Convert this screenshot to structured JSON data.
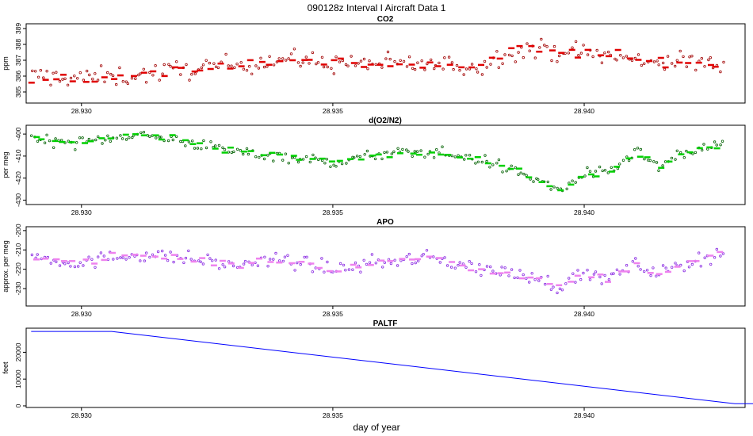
{
  "figure": {
    "title": "090128z   Interval I Aircraft Data 1",
    "xlabel": "day of year"
  },
  "chart_data": [
    {
      "type": "scatter",
      "title": "CO2",
      "ylabel": "ppm",
      "xlim": [
        28.9289,
        28.9432
      ],
      "ylim": [
        384.3,
        389.3
      ],
      "x_ticks": [
        28.93,
        28.935,
        28.94
      ],
      "x_tick_labels": [
        "28.930",
        "28.935",
        "28.940"
      ],
      "y_ticks": [
        385,
        386,
        387,
        388,
        389
      ],
      "y_tick_labels": [
        "385",
        "386",
        "387",
        "388",
        "389"
      ],
      "series": [
        {
          "style": "raw points (open circles)",
          "color": "#a00000",
          "trend": [
            [
              28.929,
              386.0
            ],
            [
              28.93,
              385.9
            ],
            [
              28.931,
              386.0
            ],
            [
              28.932,
              386.4
            ],
            [
              28.933,
              386.7
            ],
            [
              28.934,
              387.1
            ],
            [
              28.935,
              386.8
            ],
            [
              28.936,
              386.8
            ],
            [
              28.937,
              386.7
            ],
            [
              28.938,
              386.6
            ],
            [
              28.9385,
              387.6
            ],
            [
              28.939,
              387.7
            ],
            [
              28.94,
              387.5
            ],
            [
              28.941,
              387.0
            ],
            [
              28.942,
              386.9
            ],
            [
              28.9428,
              386.7
            ]
          ],
          "spread": 0.6,
          "n": 230
        },
        {
          "style": "interval means (short bars)",
          "color": "#e00000",
          "trend": [
            [
              28.929,
              386.0
            ],
            [
              28.93,
              385.8
            ],
            [
              28.931,
              386.0
            ],
            [
              28.932,
              386.4
            ],
            [
              28.933,
              386.7
            ],
            [
              28.934,
              387.1
            ],
            [
              28.935,
              386.8
            ],
            [
              28.936,
              386.8
            ],
            [
              28.937,
              386.7
            ],
            [
              28.938,
              386.6
            ],
            [
              28.9385,
              387.6
            ],
            [
              28.939,
              387.7
            ],
            [
              28.94,
              387.5
            ],
            [
              28.941,
              387.0
            ],
            [
              28.942,
              386.9
            ],
            [
              28.9428,
              386.7
            ]
          ],
          "spread": 0.35,
          "n": 70
        }
      ]
    },
    {
      "type": "scatter",
      "title": "d(O2/N2)",
      "ylabel": "per meg",
      "xlim": [
        28.9289,
        28.9432
      ],
      "ylim": [
        -432,
        -396
      ],
      "x_ticks": [
        28.93,
        28.935,
        28.94
      ],
      "x_tick_labels": [
        "28.930",
        "28.935",
        "28.940"
      ],
      "y_ticks": [
        -430,
        -420,
        -410,
        -400
      ],
      "y_tick_labels": [
        "-430",
        "-420",
        "-410",
        "-400"
      ],
      "series": [
        {
          "style": "raw points (open circles)",
          "color": "#006000",
          "trend": [
            [
              28.929,
              -402
            ],
            [
              28.93,
              -404
            ],
            [
              28.931,
              -400
            ],
            [
              28.932,
              -403
            ],
            [
              28.933,
              -408
            ],
            [
              28.934,
              -410
            ],
            [
              28.935,
              -413
            ],
            [
              28.936,
              -409
            ],
            [
              28.937,
              -408
            ],
            [
              28.938,
              -412
            ],
            [
              28.939,
              -420
            ],
            [
              28.9395,
              -426
            ],
            [
              28.94,
              -418
            ],
            [
              28.9405,
              -418
            ],
            [
              28.941,
              -408
            ],
            [
              28.9415,
              -415
            ],
            [
              28.942,
              -409
            ],
            [
              28.9428,
              -404
            ]
          ],
          "spread": 2.5,
          "n": 230
        },
        {
          "style": "interval means (short bars)",
          "color": "#00d000",
          "trend": [
            [
              28.929,
              -402
            ],
            [
              28.93,
              -404
            ],
            [
              28.931,
              -400
            ],
            [
              28.932,
              -403
            ],
            [
              28.933,
              -408
            ],
            [
              28.934,
              -410
            ],
            [
              28.935,
              -413
            ],
            [
              28.936,
              -409
            ],
            [
              28.937,
              -408
            ],
            [
              28.938,
              -412
            ],
            [
              28.939,
              -420
            ],
            [
              28.9395,
              -426
            ],
            [
              28.94,
              -418
            ],
            [
              28.9405,
              -418
            ],
            [
              28.941,
              -408
            ],
            [
              28.9415,
              -415
            ],
            [
              28.942,
              -409
            ],
            [
              28.9428,
              -404
            ]
          ],
          "spread": 1.5,
          "n": 70
        }
      ]
    },
    {
      "type": "scatter",
      "title": "APO",
      "ylabel": "approx. per meg",
      "xlim": [
        28.9289,
        28.9432
      ],
      "ylim": [
        -239,
        -198
      ],
      "x_ticks": [
        28.93,
        28.935,
        28.94
      ],
      "x_tick_labels": [
        "28.930",
        "28.935",
        "28.940"
      ],
      "y_ticks": [
        -230,
        -220,
        -210,
        -200
      ],
      "y_tick_labels": [
        "-230",
        "-220",
        "-210",
        "-200"
      ],
      "series": [
        {
          "style": "raw points (open circles)",
          "color": "#8a2be2",
          "trend": [
            [
              28.929,
              -213
            ],
            [
              28.93,
              -217
            ],
            [
              28.931,
              -212
            ],
            [
              28.932,
              -214
            ],
            [
              28.933,
              -218
            ],
            [
              28.934,
              -215
            ],
            [
              28.935,
              -220
            ],
            [
              28.936,
              -216
            ],
            [
              28.937,
              -214
            ],
            [
              28.938,
              -220
            ],
            [
              28.939,
              -224
            ],
            [
              28.9395,
              -229
            ],
            [
              28.94,
              -222
            ],
            [
              28.9405,
              -225
            ],
            [
              28.941,
              -218
            ],
            [
              28.9415,
              -222
            ],
            [
              28.942,
              -217
            ],
            [
              28.9428,
              -211
            ]
          ],
          "spread": 3.5,
          "n": 230
        },
        {
          "style": "interval means (short bars)",
          "color": "#ee82ee",
          "trend": [
            [
              28.929,
              -213
            ],
            [
              28.93,
              -217
            ],
            [
              28.931,
              -212
            ],
            [
              28.932,
              -214
            ],
            [
              28.933,
              -218
            ],
            [
              28.934,
              -215
            ],
            [
              28.935,
              -220
            ],
            [
              28.936,
              -216
            ],
            [
              28.937,
              -214
            ],
            [
              28.938,
              -220
            ],
            [
              28.939,
              -224
            ],
            [
              28.9395,
              -229
            ],
            [
              28.94,
              -222
            ],
            [
              28.9405,
              -225
            ],
            [
              28.941,
              -218
            ],
            [
              28.9415,
              -222
            ],
            [
              28.942,
              -217
            ],
            [
              28.9428,
              -211
            ]
          ],
          "spread": 2.0,
          "n": 70
        }
      ]
    },
    {
      "type": "line",
      "title": "PALTF",
      "ylabel": "feet",
      "xlim": [
        28.9289,
        28.9432
      ],
      "ylim": [
        -600,
        29000
      ],
      "x_ticks": [
        28.93,
        28.935,
        28.94
      ],
      "x_tick_labels": [
        "28.930",
        "28.935",
        "28.940"
      ],
      "y_ticks": [
        0,
        10000,
        20000
      ],
      "y_tick_labels": [
        "0",
        "10000",
        "20000"
      ],
      "series": [
        {
          "color": "#0000ff",
          "points": [
            [
              28.929,
              27800
            ],
            [
              28.9306,
              27800
            ],
            [
              28.943,
              800
            ],
            [
              28.944,
              800
            ]
          ]
        }
      ]
    }
  ]
}
